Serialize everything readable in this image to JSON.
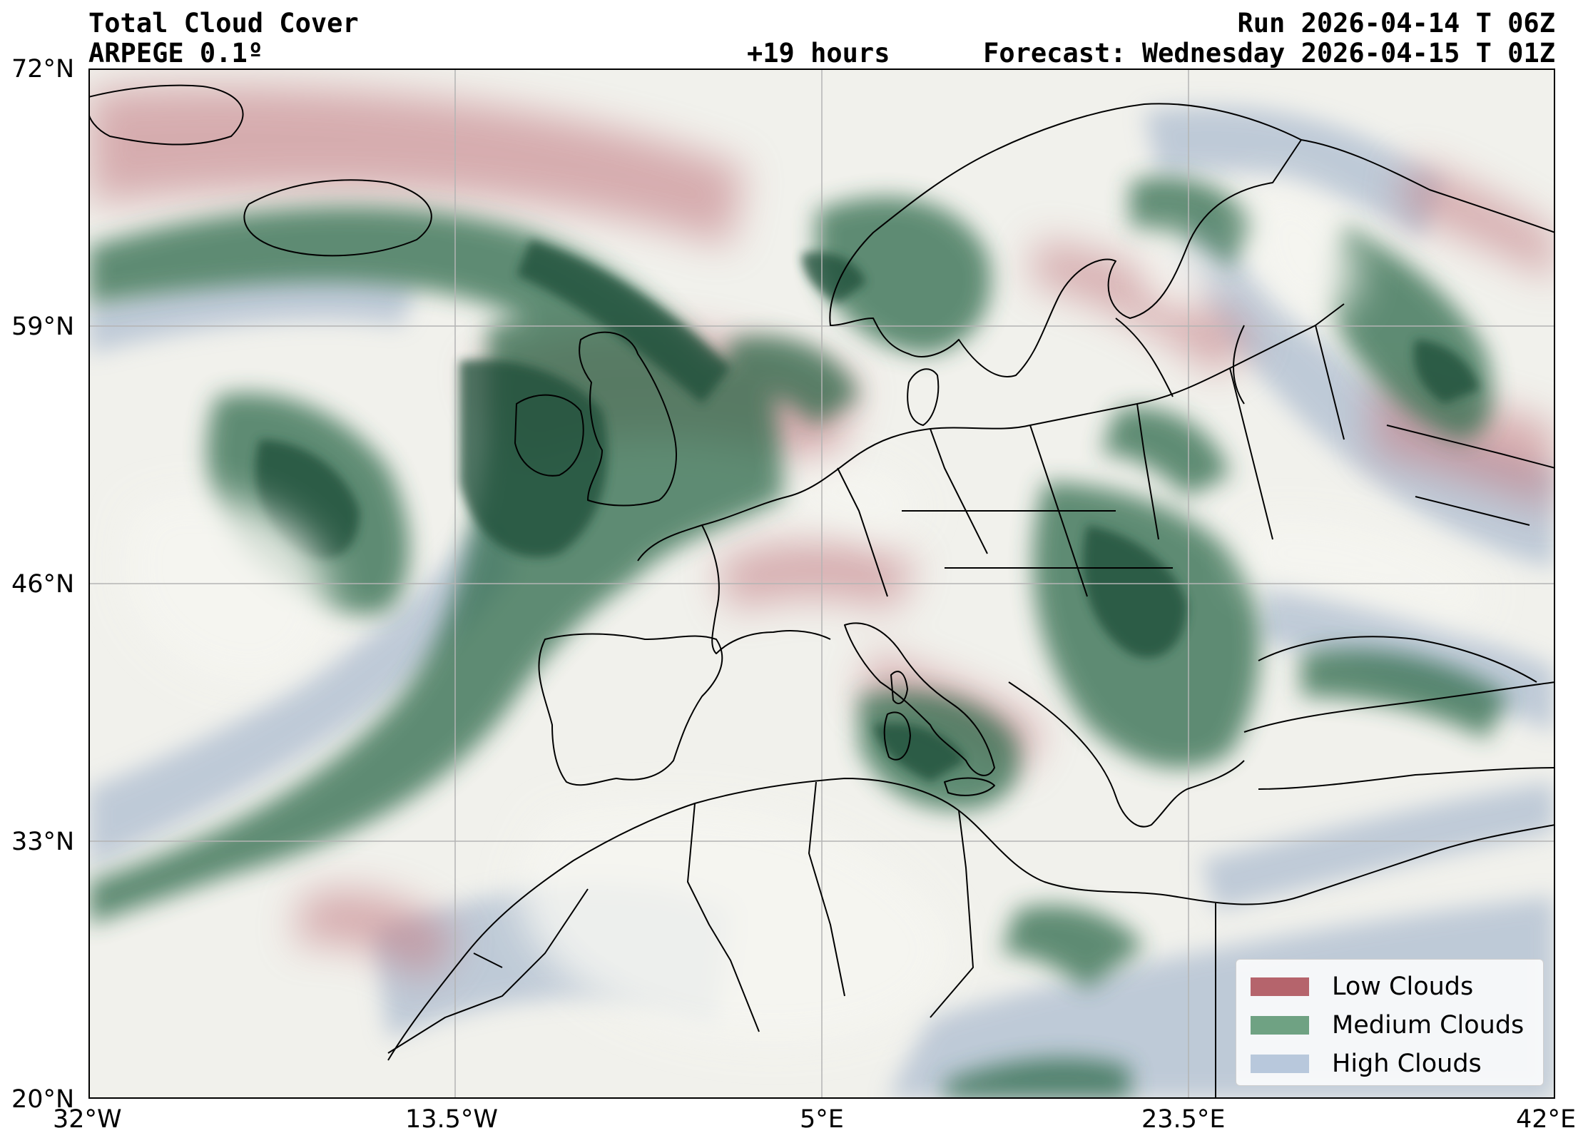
{
  "header": {
    "title": "Total Cloud Cover",
    "model": "ARPEGE 0.1º",
    "run": "Run 2026-04-14 T 06Z",
    "lead_time": "+19 hours",
    "forecast": "Forecast: Wednesday 2026-04-15 T 01Z"
  },
  "map": {
    "projection": "PlateCarree",
    "lon_range": [
      -32,
      42
    ],
    "lat_range": [
      20,
      72
    ],
    "gridlines": true,
    "lat_ticks": [
      "72°N",
      "59°N",
      "46°N",
      "33°N",
      "20°N"
    ],
    "lon_ticks": [
      "32°W",
      "13.5°W",
      "5°E",
      "23.5°E",
      "42°E"
    ]
  },
  "legend": {
    "placement": "bottom-right",
    "items": [
      {
        "label": "Low Clouds",
        "color": "#b5646c"
      },
      {
        "label": "Medium Clouds",
        "color": "#6fa283"
      },
      {
        "label": "High Clouds",
        "color": "#b8c8dc"
      }
    ]
  },
  "colors": {
    "background": "#f1f1ec",
    "low": "#b5646c",
    "medium": "#2f6a4c",
    "high": "#aebdd0",
    "coast": "#000000"
  }
}
